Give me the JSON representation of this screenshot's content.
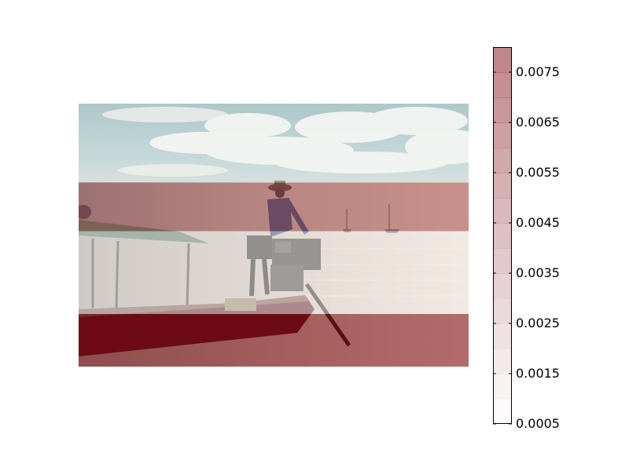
{
  "chart_data": {
    "type": "heatmap",
    "background": "photo",
    "photo_scene": [
      "sky-with-clouds",
      "sea-at-dusk",
      "longtail-boat",
      "man-at-engine",
      "two-sailboats"
    ],
    "rows": [
      {
        "label": "",
        "value": 0.0005
      },
      {
        "label": "",
        "value": 0.0055
      },
      {
        "label": "",
        "value": 0.0005
      },
      {
        "label": "",
        "value": 0.008
      }
    ],
    "row_fractions": [
      0.3,
      0.185,
      0.315,
      0.2
    ],
    "colormap": {
      "name": "Reds",
      "min": 0.0005,
      "max": 0.008,
      "low_color": "#ffffff",
      "high_color": "#7f0610",
      "alpha": 0.5
    },
    "colorbar": {
      "levels": 15,
      "tick_labels": [
        "0.0005",
        "0.0015",
        "0.0025",
        "0.0035",
        "0.0045",
        "0.0055",
        "0.0065",
        "0.0075"
      ],
      "tick_values": [
        0.0005,
        0.0015,
        0.0025,
        0.0035,
        0.0045,
        0.0055,
        0.0065,
        0.0075
      ]
    }
  }
}
